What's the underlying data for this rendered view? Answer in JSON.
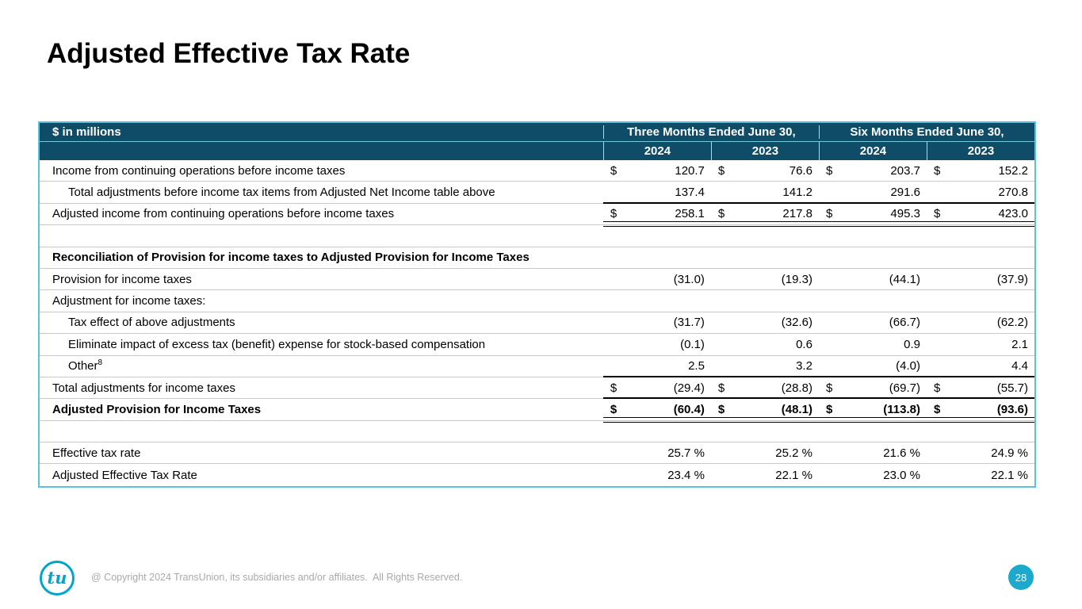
{
  "slide": {
    "title": "Adjusted Effective Tax Rate",
    "page_number": "28"
  },
  "footer": {
    "copyright": "@ Copyright 2024 TransUnion, its subsidiaries and/or affiliates.  All Rights Reserved.",
    "logo_text": "tu"
  },
  "colors": {
    "header_bg": "#0f4c68",
    "table_border_cyan": "#5ac3da",
    "row_border_gray": "#c8c8c8",
    "badge_cyan": "#1ba9cd",
    "logo_cyan": "#00a5c8",
    "footer_text_gray": "#a9a9a9"
  },
  "table": {
    "corner_label": "$ in millions",
    "groups": [
      {
        "label": "Three Months Ended June 30,",
        "years": [
          "2024",
          "2023"
        ]
      },
      {
        "label": "Six Months Ended June 30,",
        "years": [
          "2024",
          "2023"
        ]
      }
    ],
    "rows": [
      {
        "label": "Income from continuing operations before income taxes",
        "dollar": true,
        "values": [
          "120.7",
          "76.6",
          "203.7",
          "152.2"
        ]
      },
      {
        "label": "Total adjustments before income tax items from Adjusted Net Income table above",
        "indent": 1,
        "values": [
          "137.4",
          "141.2",
          "291.6",
          "270.8"
        ],
        "rule": "single"
      },
      {
        "label": "Adjusted income from continuing operations before income taxes",
        "dollar": true,
        "values": [
          "258.1",
          "217.8",
          "495.3",
          "423.0"
        ],
        "rule": "double"
      },
      {
        "type": "spacer"
      },
      {
        "label": "Reconciliation of Provision for income taxes to Adjusted Provision for Income Taxes",
        "bold": true,
        "values": []
      },
      {
        "label": "Provision for income taxes",
        "values": [
          "(31.0)",
          "(19.3)",
          "(44.1)",
          "(37.9)"
        ]
      },
      {
        "label": "Adjustment for income taxes:",
        "values": []
      },
      {
        "label": "Tax effect of above adjustments",
        "indent": 1,
        "values": [
          "(31.7)",
          "(32.6)",
          "(66.7)",
          "(62.2)"
        ]
      },
      {
        "label": "Eliminate impact of excess tax (benefit) expense for stock-based compensation",
        "indent": 1,
        "values": [
          "(0.1)",
          "0.6",
          "0.9",
          "2.1"
        ]
      },
      {
        "label": "Other",
        "sup": "8",
        "indent": 1,
        "values": [
          "2.5",
          "3.2",
          "(4.0)",
          "4.4"
        ],
        "rule": "single"
      },
      {
        "label": "Total adjustments for income taxes",
        "dollar": true,
        "values": [
          "(29.4)",
          "(28.8)",
          "(69.7)",
          "(55.7)"
        ],
        "rule": "single"
      },
      {
        "label": "Adjusted Provision for Income Taxes",
        "bold": true,
        "dollar": true,
        "values": [
          "(60.4)",
          "(48.1)",
          "(113.8)",
          "(93.6)"
        ],
        "rule": "double"
      },
      {
        "type": "spacer"
      },
      {
        "label": "Effective tax rate",
        "values": [
          "25.7 %",
          "25.2 %",
          "21.6 %",
          "24.9 %"
        ]
      },
      {
        "label": "Adjusted Effective Tax Rate",
        "values": [
          "23.4 %",
          "22.1 %",
          "23.0 %",
          "22.1 %"
        ]
      }
    ]
  }
}
